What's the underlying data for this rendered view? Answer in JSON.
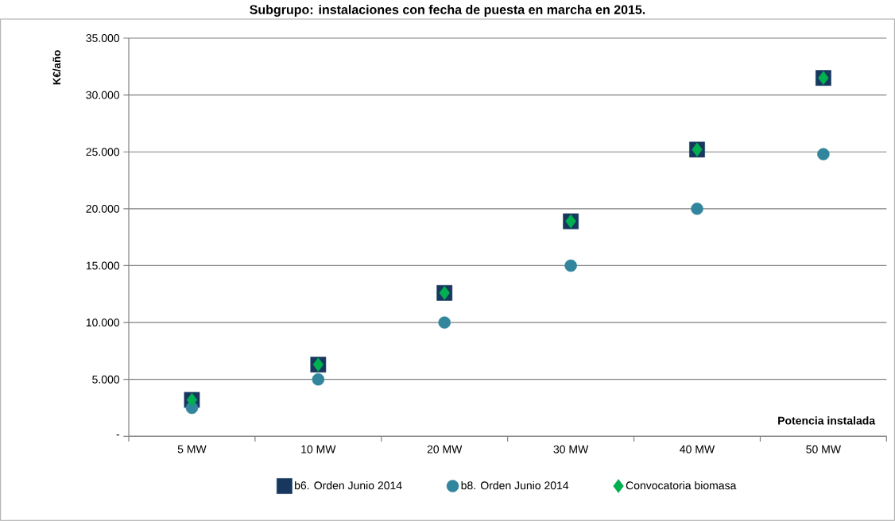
{
  "chart_data": {
    "type": "scatter",
    "title": "Subgrupo: instalaciones con fecha de puesta en marcha en 2015.",
    "xlabel": "Potencia instalada",
    "ylabel": "K€/año",
    "categories": [
      "5 MW",
      "10 MW",
      "20 MW",
      "30 MW",
      "40 MW",
      "50 MW"
    ],
    "series": [
      {
        "name": "b6. Orden Junio 2014",
        "color": "#17375e",
        "marker": "square",
        "values": [
          3200,
          6300,
          12600,
          18900,
          25200,
          31500
        ]
      },
      {
        "name": "b8. Orden Junio 2014",
        "color": "#31859c",
        "marker": "circle",
        "values": [
          2500,
          5000,
          10000,
          15000,
          20000,
          24800
        ]
      },
      {
        "name": "Convocatoria biomasa",
        "color": "#00b050",
        "marker": "diamond",
        "values": [
          3200,
          6300,
          12600,
          18900,
          25200,
          31500
        ]
      }
    ],
    "ylim": [
      0,
      35000
    ],
    "yticks": [
      {
        "value": 0,
        "label": "-"
      },
      {
        "value": 5000,
        "label": "5.000"
      },
      {
        "value": 10000,
        "label": "10.000"
      },
      {
        "value": 15000,
        "label": "15.000"
      },
      {
        "value": 20000,
        "label": "20.000"
      },
      {
        "value": 25000,
        "label": "25.000"
      },
      {
        "value": 30000,
        "label": "30.000"
      },
      {
        "value": 35000,
        "label": "35.000"
      }
    ],
    "grid": "y",
    "legend": "bottom"
  }
}
